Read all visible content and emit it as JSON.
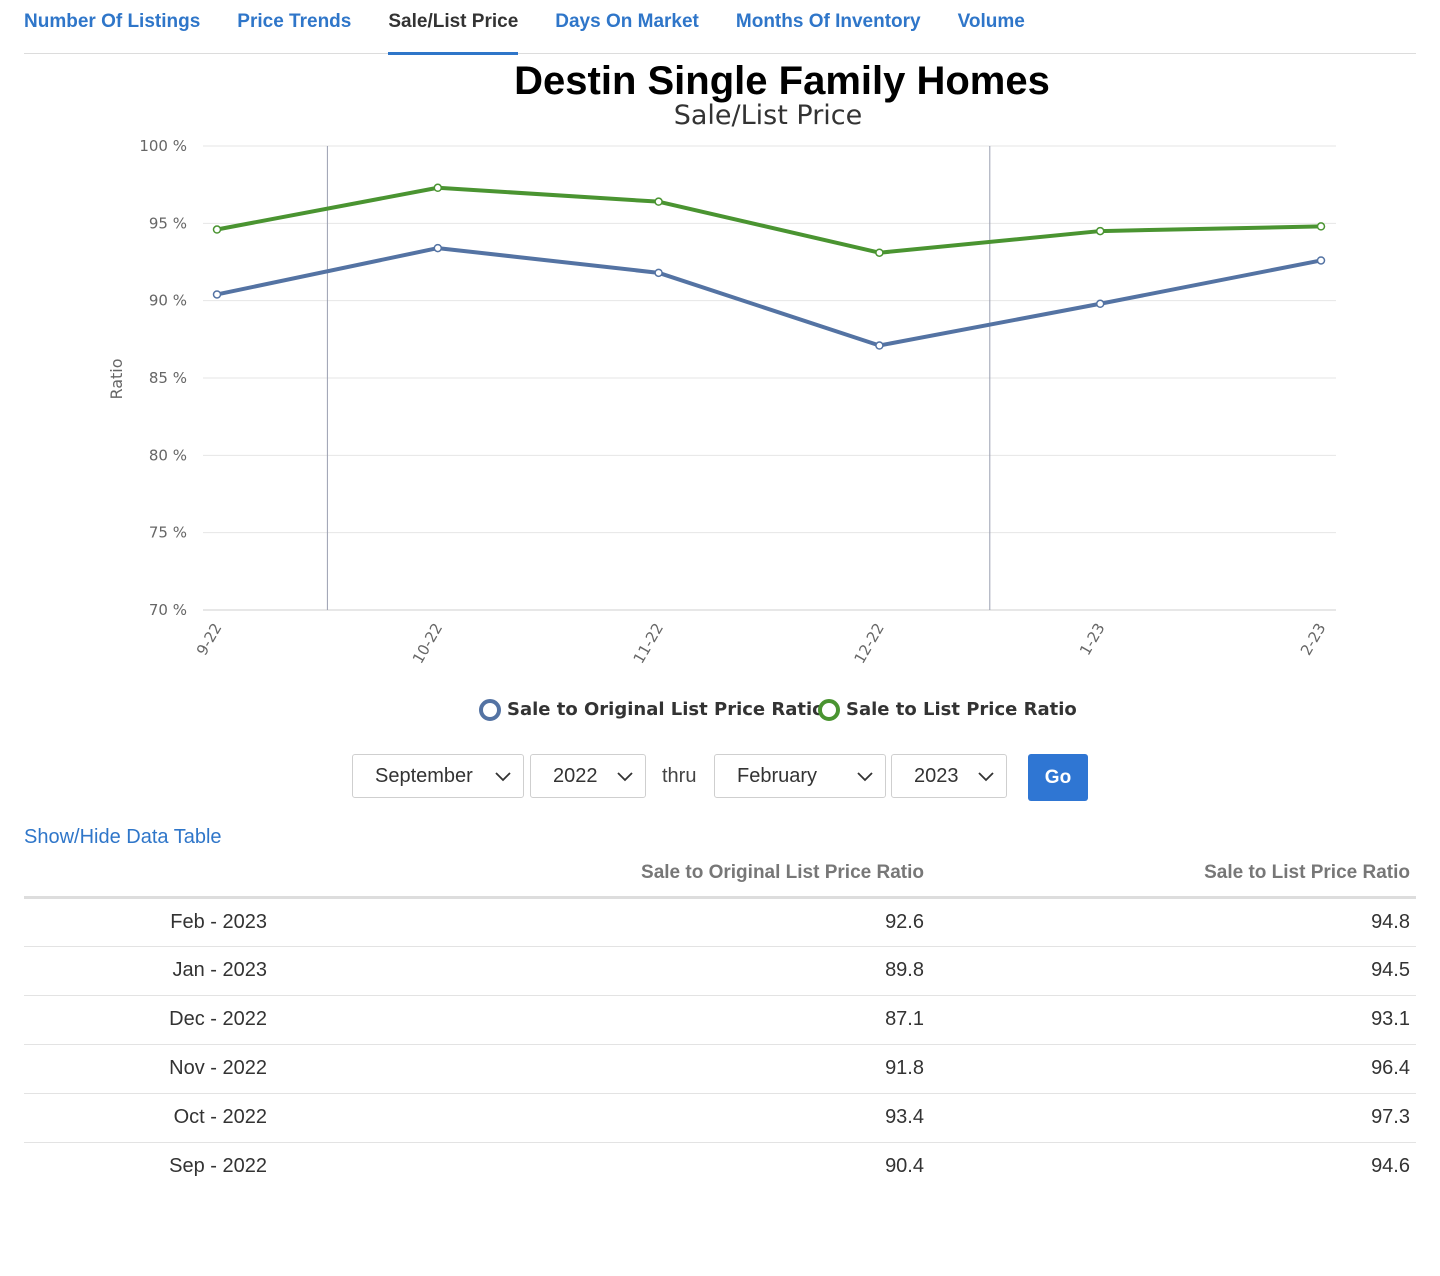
{
  "tabs": [
    {
      "label": "Number Of Listings"
    },
    {
      "label": "Price Trends"
    },
    {
      "label": "Sale/List Price",
      "active": true
    },
    {
      "label": "Days On Market"
    },
    {
      "label": "Months Of Inventory"
    },
    {
      "label": "Volume"
    }
  ],
  "chart_data": {
    "type": "line",
    "title": "Destin Single Family Homes",
    "subtitle": "Sale/List Price",
    "ylabel": "Ratio",
    "xlabel": "",
    "categories": [
      "9-22",
      "10-22",
      "11-22",
      "12-22",
      "1-23",
      "2-23"
    ],
    "y_ticks": [
      "70 %",
      "75 %",
      "80 %",
      "85 %",
      "90 %",
      "95 %",
      "100 %"
    ],
    "ylim": [
      70,
      100
    ],
    "grid": true,
    "legend_position": "bottom-center",
    "series": [
      {
        "name": "Sale to Original List Price Ratio",
        "color": "#5473a3",
        "values": [
          90.4,
          93.4,
          91.8,
          87.1,
          89.8,
          92.6
        ]
      },
      {
        "name": "Sale to List Price Ratio",
        "color": "#4a9431",
        "values": [
          94.6,
          97.3,
          96.4,
          93.1,
          94.5,
          94.8
        ]
      }
    ]
  },
  "controls": {
    "from_month": "September",
    "from_year": "2022",
    "thru_label": "thru",
    "to_month": "February",
    "to_year": "2023",
    "go_label": "Go"
  },
  "table_toggle": "Show/Hide Data Table",
  "table": {
    "headers": [
      "",
      "Sale to Original List Price Ratio",
      "Sale to List Price Ratio"
    ],
    "rows": [
      {
        "period": "Feb - 2023",
        "original": "92.6",
        "list": "94.8"
      },
      {
        "period": "Jan - 2023",
        "original": "89.8",
        "list": "94.5"
      },
      {
        "period": "Dec - 2022",
        "original": "87.1",
        "list": "93.1"
      },
      {
        "period": "Nov - 2022",
        "original": "91.8",
        "list": "96.4"
      },
      {
        "period": "Oct - 2022",
        "original": "93.4",
        "list": "97.3"
      },
      {
        "period": "Sep - 2022",
        "original": "90.4",
        "list": "94.6"
      }
    ]
  }
}
